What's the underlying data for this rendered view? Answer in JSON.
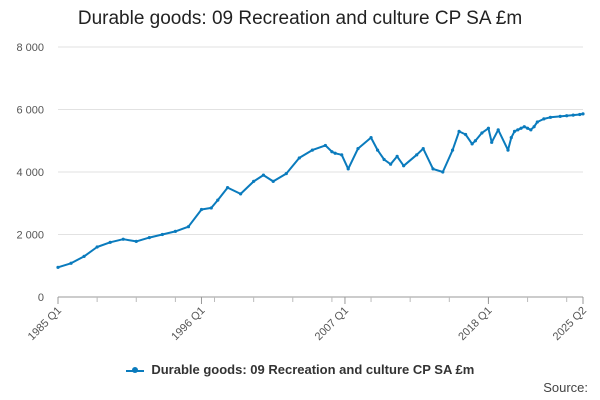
{
  "chart_data": {
    "type": "line",
    "title": "Durable goods: 09 Recreation and culture CP SA £m",
    "xlabel": "",
    "ylabel": "",
    "ylim": [
      0,
      8000
    ],
    "y_ticks": [
      0,
      2000,
      4000,
      6000,
      8000
    ],
    "y_tick_labels": [
      "0",
      "2 000",
      "4 000",
      "6 000",
      "8 000"
    ],
    "x_tick_labels": [
      "1985 Q1",
      "1996 Q1",
      "2007 Q1",
      "2018 Q1",
      "2025 Q2"
    ],
    "x_range": [
      "1985 Q1",
      "2025 Q2"
    ],
    "grid": true,
    "legend_position": "bottom",
    "color": "#0a7bbd",
    "series": [
      {
        "name": "Durable goods: 09 Recreation and culture CP SA £m",
        "x": [
          1985.0,
          1986.0,
          1987.0,
          1988.0,
          1989.0,
          1990.0,
          1991.0,
          1992.0,
          1993.0,
          1994.0,
          1995.0,
          1996.0,
          1996.75,
          1997.25,
          1998.0,
          1999.0,
          2000.0,
          2000.75,
          2001.5,
          2002.5,
          2003.5,
          2004.5,
          2005.5,
          2006.0,
          2006.25,
          2006.75,
          2007.25,
          2008.0,
          2009.0,
          2009.5,
          2010.0,
          2010.5,
          2011.0,
          2011.5,
          2012.5,
          2013.0,
          2013.75,
          2014.5,
          2015.25,
          2015.75,
          2016.25,
          2016.75,
          2017.0,
          2017.5,
          2018.0,
          2018.25,
          2018.75,
          2019.5,
          2019.75,
          2020.0,
          2020.25,
          2020.5,
          2020.75,
          2021.0,
          2021.25,
          2021.5,
          2021.75,
          2022.25,
          2022.75,
          2023.5,
          2024.0,
          2024.5,
          2025.0,
          2025.25
        ],
        "values": [
          950,
          1080,
          1300,
          1600,
          1750,
          1850,
          1780,
          1900,
          2000,
          2100,
          2250,
          2800,
          2850,
          3100,
          3500,
          3300,
          3700,
          3900,
          3700,
          3950,
          4450,
          4700,
          4850,
          4650,
          4600,
          4550,
          4100,
          4750,
          5100,
          4700,
          4400,
          4250,
          4500,
          4200,
          4550,
          4750,
          4100,
          4000,
          4700,
          5300,
          5200,
          4900,
          5000,
          5250,
          5400,
          4950,
          5350,
          4700,
          5100,
          5300,
          5350,
          5400,
          5450,
          5400,
          5350,
          5450,
          5600,
          5700,
          5750,
          5780,
          5800,
          5820,
          5840,
          5860
        ]
      }
    ]
  },
  "source_label": "Source:"
}
